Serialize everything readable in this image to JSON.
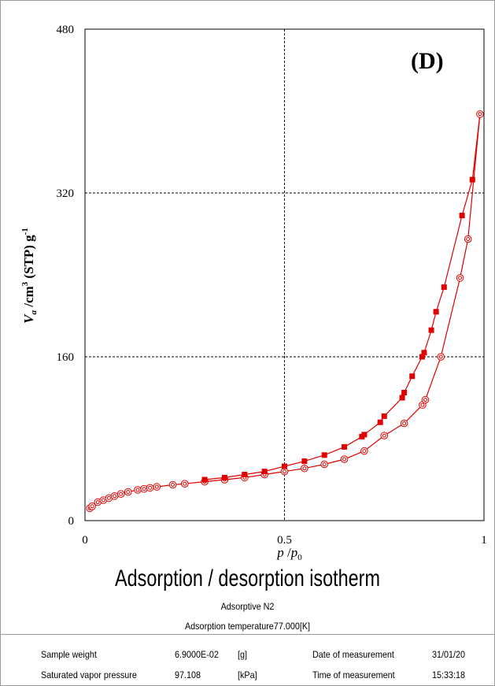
{
  "chart_data": {
    "type": "scatter",
    "panel_label": "(D)",
    "xlabel": "p / p0",
    "ylabel": "Va /cm3 (STP) g-1",
    "xlim": [
      0,
      1
    ],
    "ylim": [
      0,
      480
    ],
    "xticks": [
      "0",
      "0.5",
      "1"
    ],
    "yticks": [
      "0",
      "160",
      "320",
      "480"
    ],
    "grid": true,
    "series": [
      {
        "name": "adsorption",
        "marker": "open double circle",
        "color": "#e00000",
        "x": [
          0.012,
          0.018,
          0.032,
          0.046,
          0.06,
          0.074,
          0.09,
          0.108,
          0.132,
          0.148,
          0.163,
          0.18,
          0.22,
          0.25,
          0.3,
          0.35,
          0.4,
          0.45,
          0.5,
          0.55,
          0.6,
          0.65,
          0.7,
          0.75,
          0.8,
          0.846,
          0.853,
          0.892,
          0.94,
          0.96,
          0.99
        ],
        "y": [
          12,
          14,
          18,
          20,
          22,
          24,
          26,
          28,
          30,
          31,
          32,
          33,
          35,
          36,
          38,
          40,
          42,
          45,
          48,
          51,
          55,
          60,
          68,
          83,
          95,
          113,
          118,
          160,
          237,
          275,
          397
        ]
      },
      {
        "name": "desorption",
        "marker": "filled square",
        "color": "#e00000",
        "x": [
          0.971,
          0.945,
          0.9,
          0.88,
          0.868,
          0.85,
          0.845,
          0.82,
          0.8,
          0.795,
          0.75,
          0.74,
          0.7,
          0.694,
          0.65,
          0.6,
          0.55,
          0.5,
          0.45,
          0.4,
          0.35,
          0.3
        ],
        "y": [
          333,
          298,
          228,
          204,
          186,
          164,
          160,
          141,
          125,
          120,
          102,
          96,
          84,
          82,
          72,
          64,
          58,
          53,
          48,
          45,
          42,
          40
        ]
      }
    ]
  },
  "captions": {
    "title": "Adsorption / desorption isotherm",
    "adsorptive": "Adsorptive N2",
    "temperature": "Adsorption temperature77.000[K]"
  },
  "info": {
    "sample_weight_label": "Sample weight",
    "sample_weight_value": "6.9000E-02",
    "sample_weight_unit": "[g]",
    "date_label": "Date of measurement",
    "date_value": "31/01/20",
    "svp_label": "Saturated vapor pressure",
    "svp_value": "97.108",
    "svp_unit": "[kPa]",
    "time_label": "Time of measurement",
    "time_value": "15:33:18"
  }
}
